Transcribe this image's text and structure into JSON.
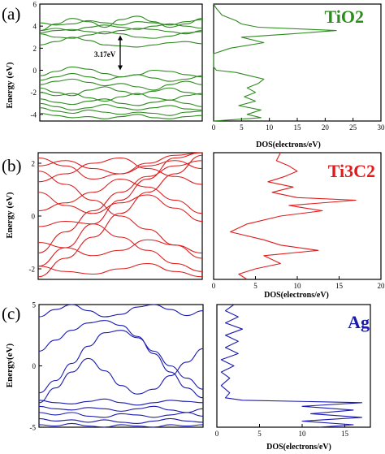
{
  "chart_data": [
    {
      "panel": "(a)",
      "type": "line",
      "role": "band-structure",
      "ylabel": "Energy (eV)",
      "ylim": [
        -4.6,
        6
      ],
      "yticks": [
        -4,
        -2,
        0,
        2,
        4,
        6
      ],
      "color": "#2e8b1f",
      "annotation": "3.17eV",
      "gap": [
        0.0,
        3.17
      ],
      "bands_y": [
        [
          2.3,
          2.6,
          3.0,
          2.7,
          2.3,
          2.2,
          2.1,
          2.3,
          2.5,
          2.6,
          2.4
        ],
        [
          3.3,
          3.0,
          2.9,
          3.2,
          3.5,
          3.3,
          3.0,
          2.9,
          3.1,
          3.4,
          3.5
        ],
        [
          3.4,
          3.6,
          3.7,
          3.5,
          3.3,
          3.6,
          3.8,
          3.7,
          3.5,
          3.3,
          3.6
        ],
        [
          3.6,
          3.8,
          3.6,
          3.9,
          4.1,
          3.9,
          3.7,
          4.0,
          4.2,
          4.0,
          3.8
        ],
        [
          4.3,
          4.1,
          4.2,
          4.5,
          4.3,
          4.1,
          4.4,
          4.3,
          4.1,
          4.4,
          4.6
        ],
        [
          3.6,
          4.2,
          4.7,
          4.4,
          3.9,
          4.6,
          4.9,
          4.4,
          3.9,
          4.2,
          4.7
        ],
        [
          -0.5,
          -0.1,
          0.3,
          0.1,
          -0.3,
          -0.6,
          -0.4,
          0.0,
          -0.1,
          -0.4,
          -0.6
        ],
        [
          -0.9,
          -0.6,
          -0.3,
          -0.6,
          -0.9,
          -0.6,
          -0.4,
          -0.7,
          -1.0,
          -0.8,
          -0.5
        ],
        [
          -1.3,
          -1.0,
          -0.8,
          -1.1,
          -1.4,
          -1.2,
          -1.5,
          -1.8,
          -1.3,
          -1.0,
          -1.3
        ],
        [
          -1.6,
          -2.0,
          -2.3,
          -1.8,
          -1.5,
          -1.9,
          -2.2,
          -1.9,
          -1.6,
          -2.0,
          -2.2
        ],
        [
          -2.0,
          -2.3,
          -2.1,
          -2.5,
          -2.8,
          -2.4,
          -2.1,
          -2.5,
          -2.7,
          -2.3,
          -2.1
        ],
        [
          -2.6,
          -2.9,
          -3.1,
          -2.8,
          -2.6,
          -3.0,
          -3.2,
          -2.9,
          -2.7,
          -3.0,
          -3.3
        ],
        [
          -3.0,
          -3.3,
          -3.6,
          -3.4,
          -3.1,
          -3.4,
          -3.6,
          -3.4,
          -3.2,
          -3.5,
          -3.6
        ],
        [
          -3.4,
          -3.7,
          -3.9,
          -3.6,
          -3.8,
          -4.0,
          -3.8,
          -3.9,
          -4.1,
          -3.8,
          -3.7
        ],
        [
          -3.9,
          -4.1,
          -4.3,
          -4.2,
          -4.4,
          -4.2,
          -4.0,
          -4.3,
          -4.4,
          -4.2,
          -4.1
        ]
      ],
      "dos": {
        "label": "TiO2",
        "xlabel": "DOS(electrons/eV)",
        "xlim": [
          0,
          30
        ],
        "xticks": [
          0,
          5,
          10,
          15,
          20,
          25,
          30
        ],
        "y": [
          -4.6,
          -4.3,
          -4.0,
          -3.6,
          -3.2,
          -2.8,
          -2.4,
          -2.0,
          -1.6,
          -1.2,
          -0.8,
          -0.5,
          -0.2,
          0.0,
          0.3,
          1.5,
          2.0,
          2.5,
          3.0,
          3.3,
          3.6,
          3.9,
          4.2,
          4.5,
          5.0,
          5.6,
          6.0
        ],
        "x": [
          0,
          8.5,
          6,
          8.5,
          4.5,
          7.5,
          5.5,
          7.5,
          6,
          8,
          9,
          6.5,
          4,
          0.5,
          0,
          0,
          3,
          9,
          5,
          14,
          22,
          8,
          5,
          4,
          1.5,
          0.5,
          0
        ]
      }
    },
    {
      "panel": "(b)",
      "type": "line",
      "role": "band-structure",
      "ylabel": "Energy (eV)",
      "ylim": [
        -2.4,
        2.4
      ],
      "yticks": [
        -2,
        0,
        2
      ],
      "color": "#e01b1b",
      "bands_y": [
        [
          -2.3,
          -1.6,
          -0.8,
          0.1,
          0.9,
          1.6,
          2.3
        ],
        [
          -1.9,
          -1.2,
          -0.3,
          0.6,
          1.4,
          2.2,
          2.4
        ],
        [
          -1.4,
          -0.6,
          0.2,
          0.9,
          1.5,
          1.9,
          2.1
        ],
        [
          -0.4,
          -0.2,
          -0.3,
          -0.8,
          -1.3,
          -1.8,
          -2.1
        ],
        [
          0.2,
          0.5,
          0.9,
          1.4,
          1.1,
          0.6,
          0.1
        ],
        [
          1.7,
          1.2,
          0.6,
          0.0,
          -0.5,
          -1.1,
          -1.6
        ],
        [
          2.2,
          1.9,
          1.4,
          1.6,
          2.0,
          2.3,
          2.4
        ],
        [
          1.3,
          1.6,
          2.0,
          2.2,
          1.8,
          1.5,
          1.2
        ],
        [
          -1.0,
          -1.2,
          -1.5,
          -1.3,
          -0.9,
          -1.1,
          -1.4
        ],
        [
          0.9,
          0.4,
          0.1,
          0.5,
          0.8,
          0.3,
          -0.2
        ],
        [
          -1.9,
          -2.1,
          -2.2,
          -2.0,
          -1.8,
          -2.1,
          -2.3
        ],
        [
          1.9,
          2.1,
          1.8,
          1.6,
          1.9,
          2.1,
          1.8
        ]
      ],
      "dos": {
        "label": "Ti3C2",
        "xlabel": "DOS(electrons/eV)",
        "xlim": [
          0,
          20
        ],
        "xticks": [
          0,
          5,
          10,
          15,
          20
        ],
        "y": [
          -2.4,
          -2.2,
          -2.0,
          -1.8,
          -1.5,
          -1.3,
          -1.1,
          -0.9,
          -0.6,
          -0.3,
          0.0,
          0.2,
          0.4,
          0.6,
          0.7,
          0.9,
          1.1,
          1.3,
          1.5,
          1.7,
          1.9,
          2.1,
          2.4
        ],
        "x": [
          4,
          3,
          5,
          8,
          6,
          12.5,
          8,
          6,
          2,
          4,
          8,
          13,
          9,
          17,
          10,
          7,
          9.5,
          6.5,
          8.5,
          10,
          9,
          7.5,
          8
        ]
      }
    },
    {
      "panel": "(c)",
      "type": "line",
      "role": "band-structure",
      "ylabel": "Energy(eV)",
      "ylim": [
        -5,
        5
      ],
      "yticks": [
        -5,
        0,
        5
      ],
      "color": "#1a1ab0",
      "bands_y": [
        [
          4.0,
          4.6,
          5.0,
          4.5,
          4.0,
          4.2,
          4.8,
          5.0,
          4.6,
          4.1,
          4.5
        ],
        [
          1.2,
          2.1,
          2.9,
          3.5,
          3.7,
          3.3,
          2.4,
          1.0,
          -0.5,
          -1.8,
          -2.6
        ],
        [
          -2.2,
          -1.2,
          0.2,
          1.6,
          2.7,
          2.9,
          2.3,
          1.2,
          0.0,
          -1.0,
          -1.9
        ],
        [
          -3.0,
          -1.8,
          -0.5,
          0.6,
          -0.4,
          -1.6,
          -2.3,
          -1.9,
          -0.8,
          0.3,
          1.4
        ],
        [
          -2.8,
          -3.0,
          -3.1,
          -2.9,
          -2.7,
          -3.0,
          -3.2,
          -3.0,
          -2.8,
          -2.9,
          -3.0
        ],
        [
          -3.3,
          -3.5,
          -3.6,
          -3.4,
          -3.5,
          -3.7,
          -3.5,
          -3.3,
          -3.6,
          -3.8,
          -3.5
        ],
        [
          -3.8,
          -4.0,
          -3.8,
          -4.1,
          -4.2,
          -3.9,
          -4.0,
          -4.2,
          -4.0,
          -3.8,
          -4.1
        ],
        [
          -4.3,
          -4.5,
          -4.4,
          -4.6,
          -4.4,
          -4.6,
          -4.7,
          -4.5,
          -4.3,
          -4.5,
          -4.6
        ],
        [
          -4.8,
          -4.9,
          -4.7,
          -4.9,
          -5.0,
          -4.8,
          -4.9,
          -5.0,
          -4.8,
          -4.9,
          -4.8
        ]
      ],
      "dos": {
        "label": "Ag",
        "xlabel": "DOS(electrons/eV)",
        "xlim": [
          0,
          18
        ],
        "xticks": [
          0,
          5,
          10,
          15
        ],
        "y": [
          -5.0,
          -4.8,
          -4.5,
          -4.2,
          -3.9,
          -3.6,
          -3.3,
          -3.0,
          -2.8,
          -2.6,
          -2.2,
          -1.6,
          -1.0,
          -0.5,
          0.0,
          0.5,
          1.0,
          1.5,
          2.0,
          2.5,
          3.0,
          3.5,
          4.0,
          4.5,
          5.0
        ],
        "x": [
          12,
          16,
          10,
          17,
          11,
          16,
          10,
          17,
          3,
          1,
          1.5,
          0.5,
          1.5,
          0.5,
          2,
          0.5,
          2.5,
          1,
          2.5,
          1,
          3,
          1,
          2.5,
          1,
          2
        ]
      }
    }
  ]
}
